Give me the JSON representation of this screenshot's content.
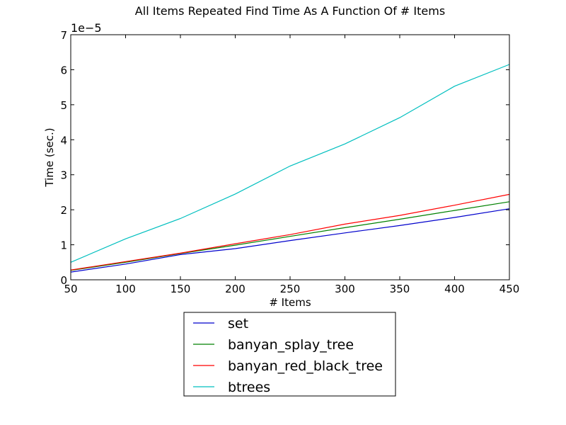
{
  "chart_data": {
    "type": "line",
    "title": "All Items Repeated Find Time As A Function Of # Items",
    "xlabel": "# Items",
    "ylabel": "Time (sec.)",
    "y_scale_label": "1e−5",
    "x": [
      50,
      100,
      150,
      200,
      250,
      300,
      350,
      400,
      450
    ],
    "xlim": [
      50,
      450
    ],
    "ylim": [
      0,
      7
    ],
    "x_ticks": [
      "50",
      "100",
      "150",
      "200",
      "250",
      "300",
      "350",
      "400",
      "450"
    ],
    "y_ticks": [
      "0",
      "1",
      "2",
      "3",
      "4",
      "5",
      "6",
      "7"
    ],
    "grid": false,
    "legend_position": "below plot",
    "series": [
      {
        "name": "set",
        "color": "#0000cc",
        "values": [
          0.22,
          0.45,
          0.72,
          0.89,
          1.12,
          1.34,
          1.55,
          1.78,
          2.03
        ]
      },
      {
        "name": "banyan_splay_tree",
        "color": "#008000",
        "values": [
          0.27,
          0.5,
          0.75,
          0.99,
          1.24,
          1.49,
          1.73,
          1.98,
          2.23
        ]
      },
      {
        "name": "banyan_red_black_tree",
        "color": "#ff0000",
        "values": [
          0.28,
          0.52,
          0.76,
          1.03,
          1.29,
          1.59,
          1.84,
          2.13,
          2.44
        ]
      },
      {
        "name": "btrees",
        "color": "#00bfbf",
        "values": [
          0.5,
          1.17,
          1.75,
          2.45,
          3.25,
          3.88,
          4.63,
          5.53,
          6.15
        ]
      }
    ]
  }
}
